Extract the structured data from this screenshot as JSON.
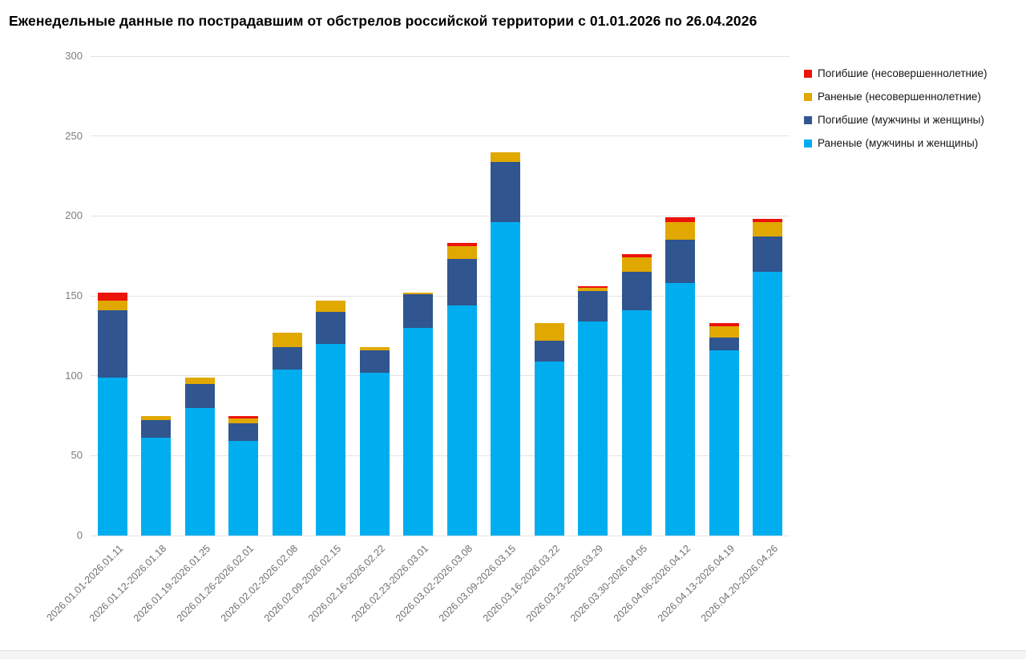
{
  "title": "Еженедельные данные по пострадавшим от обстрелов российской территории с 01.01.2026 по 26.04.2026",
  "chart_data": {
    "type": "bar",
    "stacked": true,
    "title": "Еженедельные данные по пострадавшим от обстрелов российской территории с 01.01.2026 по 26.04.2026",
    "xlabel": "",
    "ylabel": "",
    "ylim": [
      0,
      300
    ],
    "yticks": [
      0,
      50,
      100,
      150,
      200,
      250,
      300
    ],
    "grid": true,
    "legend_position": "top-right",
    "categories": [
      "2026.01.01-2026.01.11",
      "2026.01.12-2026.01.18",
      "2026.01.19-2026.01.25",
      "2026.01.26-2026.02.01",
      "2026.02.02-2026.02.08",
      "2026.02.09-2026.02.15",
      "2026.02.16-2026.02.22",
      "2026.02.23-2026.03.01",
      "2026.03.02-2026.03.08",
      "2026.03.09-2026.03.15",
      "2026.03.16-2026.03.22",
      "2026.03.23-2026.03.29",
      "2026.03.30-2026.04.05",
      "2026.04.06-2026.04.12",
      "2026.04.13-2026.04.19",
      "2026.04.20-2026.04.26"
    ],
    "series": [
      {
        "name": "Раненые (мужчины и женщины)",
        "color": "#00aeef",
        "values": [
          99,
          61,
          80,
          59,
          104,
          120,
          102,
          130,
          144,
          196,
          109,
          134,
          141,
          158,
          116,
          165
        ]
      },
      {
        "name": "Погибшие (мужчины и женщины)",
        "color": "#30558f",
        "values": [
          42,
          11,
          15,
          11,
          14,
          20,
          14,
          21,
          29,
          38,
          13,
          19,
          24,
          27,
          8,
          22
        ]
      },
      {
        "name": "Раненые (несовершеннолетние)",
        "color": "#e0a800",
        "values": [
          6,
          3,
          4,
          3,
          9,
          7,
          2,
          1,
          8,
          6,
          11,
          2,
          9,
          11,
          7,
          9
        ]
      },
      {
        "name": "Погибшие (несовершеннолетние)",
        "color": "#ec130b",
        "values": [
          5,
          0,
          0,
          2,
          0,
          0,
          0,
          0,
          2,
          0,
          0,
          1,
          2,
          3,
          2,
          2
        ]
      }
    ]
  }
}
